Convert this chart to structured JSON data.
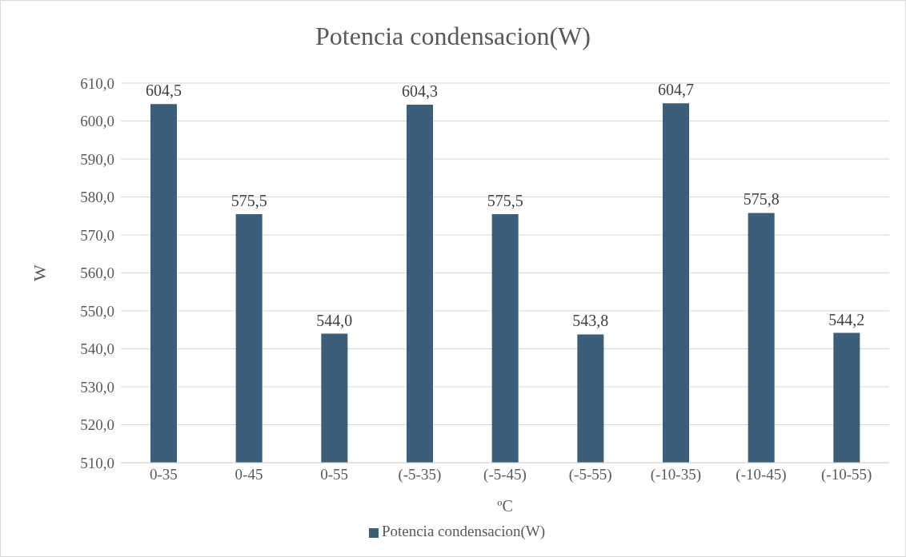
{
  "chart_data": {
    "type": "bar",
    "title": "Potencia condensacion(W)",
    "xlabel": "ºC",
    "ylabel": "W",
    "categories": [
      "0-35",
      "0-45",
      "0-55",
      "(-5-35)",
      "(-5-45)",
      "(-5-55)",
      "(-10-35)",
      "(-10-45)",
      "(-10-55)"
    ],
    "series": [
      {
        "name": "Potencia condensacion(W)",
        "color": "#3b5f7a",
        "values": [
          604.5,
          575.5,
          544.0,
          604.3,
          575.5,
          543.8,
          604.7,
          575.8,
          544.2
        ],
        "value_labels": [
          "604,5",
          "575,5",
          "544,0",
          "604,3",
          "575,5",
          "543,8",
          "604,7",
          "575,8",
          "544,2"
        ]
      }
    ],
    "ylim": [
      510,
      610
    ],
    "yticks": [
      {
        "value": 510,
        "label": "510,0"
      },
      {
        "value": 520,
        "label": "520,0"
      },
      {
        "value": 530,
        "label": "530,0"
      },
      {
        "value": 540,
        "label": "540,0"
      },
      {
        "value": 550,
        "label": "550,0"
      },
      {
        "value": 560,
        "label": "560,0"
      },
      {
        "value": 570,
        "label": "570,0"
      },
      {
        "value": 580,
        "label": "580,0"
      },
      {
        "value": 590,
        "label": "590,0"
      },
      {
        "value": 600,
        "label": "600,0"
      },
      {
        "value": 610,
        "label": "610,0"
      }
    ],
    "grid": "y",
    "legend": "bottom"
  }
}
